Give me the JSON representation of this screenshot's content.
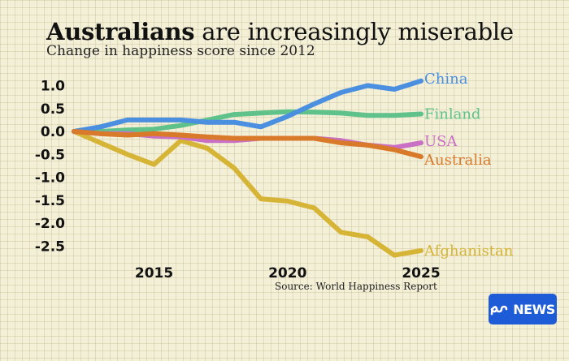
{
  "header": {
    "title_bold": "Australians",
    "title_rest": " are increasingly miserable",
    "subtitle": "Change in happiness score since 2012"
  },
  "source": "Source:  World Happiness Report",
  "brand": {
    "logo_text": "NEWS",
    "color": "#1e5bd6"
  },
  "chart_data": {
    "type": "line",
    "title": "Australians are increasingly miserable",
    "subtitle": "Change in happiness score since 2012",
    "x_ticks": [
      2015,
      2020,
      2025
    ],
    "y_ticks": [
      "1.0",
      "0.5",
      "0.0",
      "-0.5",
      "-1.0",
      "-1.5",
      "-2.0",
      "-2.5"
    ],
    "xlim": [
      2012,
      2025
    ],
    "ylim": [
      -2.5,
      1.0
    ],
    "grid": false,
    "legend": "inline labels at line ends (right)",
    "series": [
      {
        "name": "Afghanistan",
        "color": "#d6b436",
        "x": [
          2012,
          2013,
          2014,
          2015,
          2016,
          2017,
          2018,
          2019,
          2020,
          2021,
          2022,
          2023,
          2024,
          2025
        ],
        "y": [
          0.0,
          -0.25,
          -0.5,
          -0.72,
          -0.2,
          -0.37,
          -0.8,
          -1.47,
          -1.52,
          -1.67,
          -2.2,
          -2.3,
          -2.7,
          -2.6
        ]
      },
      {
        "name": "Finland",
        "color": "#5ec28a",
        "x": [
          2012,
          2013,
          2014,
          2015,
          2016,
          2017,
          2018,
          2019,
          2020,
          2021,
          2022,
          2023,
          2024,
          2025
        ],
        "y": [
          0.0,
          0.0,
          0.03,
          0.05,
          0.13,
          0.25,
          0.37,
          0.4,
          0.43,
          0.42,
          0.4,
          0.35,
          0.35,
          0.38
        ]
      },
      {
        "name": "USA",
        "color": "#c970c4",
        "x": [
          2012,
          2013,
          2014,
          2015,
          2016,
          2017,
          2018,
          2019,
          2020,
          2021,
          2022,
          2023,
          2024,
          2025
        ],
        "y": [
          0.0,
          -0.05,
          -0.05,
          -0.1,
          -0.12,
          -0.2,
          -0.2,
          -0.15,
          -0.15,
          -0.15,
          -0.2,
          -0.3,
          -0.35,
          -0.25
        ]
      },
      {
        "name": "China",
        "color": "#4a8fe0",
        "x": [
          2012,
          2013,
          2014,
          2015,
          2016,
          2017,
          2018,
          2019,
          2020,
          2021,
          2022,
          2023,
          2024,
          2025
        ],
        "y": [
          0.0,
          0.1,
          0.25,
          0.25,
          0.25,
          0.2,
          0.2,
          0.1,
          0.33,
          0.6,
          0.85,
          1.0,
          0.92,
          1.1
        ]
      },
      {
        "name": "Australia",
        "color": "#d9792a",
        "x": [
          2012,
          2013,
          2014,
          2015,
          2016,
          2017,
          2018,
          2019,
          2020,
          2021,
          2022,
          2023,
          2024,
          2025
        ],
        "y": [
          0.0,
          -0.05,
          -0.08,
          -0.05,
          -0.08,
          -0.12,
          -0.15,
          -0.15,
          -0.15,
          -0.15,
          -0.25,
          -0.3,
          -0.4,
          -0.55
        ]
      }
    ]
  }
}
